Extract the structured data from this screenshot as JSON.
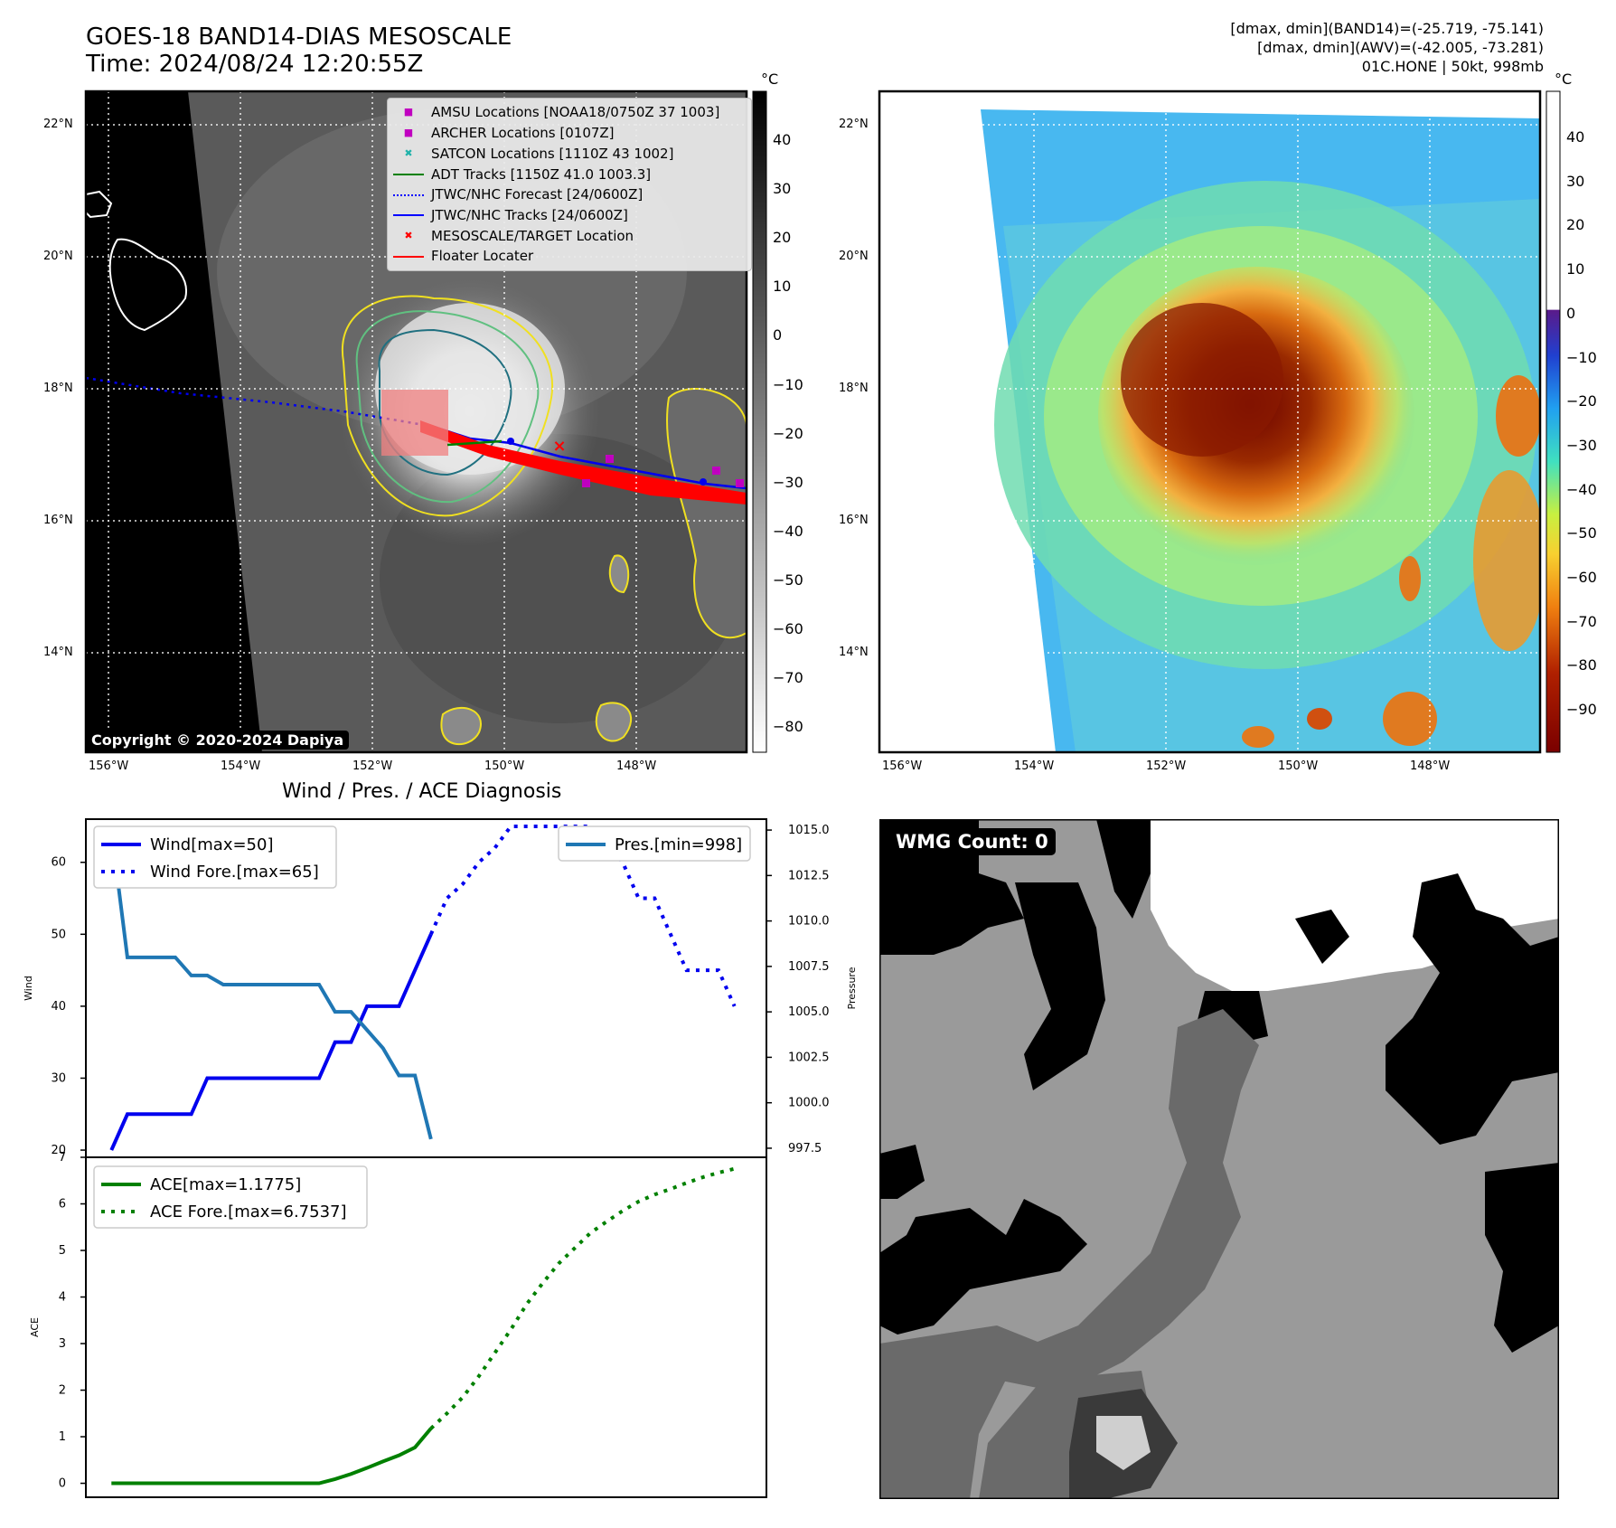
{
  "header": {
    "title_line1": "GOES-18 BAND14-DIAS MESOSCALE",
    "title_line2": "Time: 2024/08/24 12:20:55Z",
    "info_line1": "[dmax, dmin](BAND14)=(-25.719, -75.141)",
    "info_line2": "[dmax, dmin](AWV)=(-42.005, -73.281)",
    "info_line3": "01C.HONE | 50kt, 998mb"
  },
  "maps": {
    "lat_labels": [
      "22°N",
      "20°N",
      "18°N",
      "16°N",
      "14°N"
    ],
    "lon_labels": [
      "156°W",
      "154°W",
      "152°W",
      "150°W",
      "148°W"
    ],
    "copyright": "Copyright © 2020-2024 Dapiya",
    "left_colorbar": {
      "unit": "°C",
      "ticks": [
        "40",
        "30",
        "20",
        "10",
        "0",
        "−10",
        "−20",
        "−30",
        "−40",
        "−50",
        "−60",
        "−70",
        "−80"
      ]
    },
    "right_colorbar": {
      "unit": "°C",
      "ticks": [
        "40",
        "30",
        "20",
        "10",
        "0",
        "−10",
        "−20",
        "−30",
        "−40",
        "−50",
        "−60",
        "−70",
        "−80",
        "−90"
      ]
    },
    "legend": [
      {
        "label": "AMSU Locations [NOAA18/0750Z 37 1003]",
        "color": "#c000c0",
        "marker": "square"
      },
      {
        "label": "ARCHER Locations [0107Z]",
        "color": "#c000c0",
        "marker": "square"
      },
      {
        "label": "SATCON Locations [1110Z 43 1002]",
        "color": "#20b2aa",
        "marker": "x"
      },
      {
        "label": "ADT Tracks [1150Z 41.0 1003.3]",
        "color": "#008000",
        "marker": "line"
      },
      {
        "label": "JTWC/NHC Forecast [24/0600Z]",
        "color": "#0000ff",
        "marker": "dotted"
      },
      {
        "label": "JTWC/NHC Tracks [24/0600Z]",
        "color": "#0000ff",
        "marker": "line-dot"
      },
      {
        "label": "MESOSCALE/TARGET Location",
        "color": "#ff0000",
        "marker": "x"
      },
      {
        "label": "Floater Locater",
        "color": "#ff0000",
        "marker": "line"
      }
    ]
  },
  "wmg": {
    "label": "WMG Count: 0"
  },
  "chart_data": [
    {
      "type": "line",
      "title": "Wind / Pres. / ACE Diagnosis",
      "ylabel": "Wind",
      "ylim": [
        19,
        66
      ],
      "y2label": "Pressure",
      "y2lim": [
        997.0,
        1015.6
      ],
      "yticks": [
        20,
        30,
        40,
        50,
        60
      ],
      "y2ticks": [
        "997.5",
        "1000.0",
        "1002.5",
        "1005.0",
        "1007.5",
        "1010.0",
        "1012.5",
        "1015.0"
      ],
      "series": [
        {
          "name": "Wind[max=50]",
          "color": "#0000ee",
          "style": "solid",
          "axis": "left",
          "x": [
            0,
            1,
            2,
            3,
            4,
            5,
            6,
            7,
            8,
            9,
            10,
            11,
            12,
            13,
            14,
            15,
            16,
            17,
            18,
            19,
            20
          ],
          "values": [
            20,
            25,
            25,
            25,
            25,
            25,
            30,
            30,
            30,
            30,
            30,
            30,
            30,
            30,
            35,
            35,
            40,
            40,
            40,
            45,
            50
          ]
        },
        {
          "name": "Wind Fore.[max=65]",
          "color": "#0000ee",
          "style": "dotted",
          "axis": "left",
          "x": [
            20,
            21,
            22,
            23,
            24,
            25,
            26,
            27,
            28,
            29,
            30,
            31,
            32,
            33,
            34,
            35,
            36,
            37,
            38,
            39
          ],
          "values": [
            50,
            55,
            57,
            60,
            62,
            65,
            65,
            65,
            65,
            65,
            65,
            63,
            60,
            55,
            55,
            50,
            45,
            45,
            45,
            40
          ]
        },
        {
          "name": "Pres.[min=998]",
          "color": "#1f77b4",
          "style": "solid",
          "axis": "right",
          "x": [
            0,
            1,
            2,
            3,
            4,
            5,
            6,
            7,
            8,
            9,
            10,
            11,
            12,
            13,
            14,
            15,
            16,
            17,
            18,
            19,
            20
          ],
          "values": [
            1015,
            1008,
            1008,
            1008,
            1008,
            1007,
            1007,
            1006.5,
            1006.5,
            1006.5,
            1006.5,
            1006.5,
            1006.5,
            1006.5,
            1005,
            1005,
            1004,
            1003,
            1001.5,
            1001.5,
            998
          ]
        }
      ]
    },
    {
      "type": "line",
      "ylabel": "ACE",
      "ylim": [
        -0.3,
        7.0
      ],
      "yticks": [
        0,
        1,
        2,
        3,
        4,
        5,
        6,
        7
      ],
      "series": [
        {
          "name": "ACE[max=1.1775]",
          "color": "#008000",
          "style": "solid",
          "x": [
            0,
            1,
            2,
            3,
            4,
            5,
            6,
            7,
            8,
            9,
            10,
            11,
            12,
            13,
            14,
            15,
            16,
            17,
            18,
            19,
            20
          ],
          "values": [
            0,
            0,
            0,
            0,
            0,
            0,
            0,
            0,
            0,
            0,
            0,
            0,
            0,
            0,
            0.09,
            0.2,
            0.33,
            0.47,
            0.6,
            0.77,
            1.1775
          ]
        },
        {
          "name": "ACE Fore.[max=6.7537]",
          "color": "#008000",
          "style": "dotted",
          "x": [
            20,
            21,
            22,
            23,
            24,
            25,
            26,
            27,
            28,
            29,
            30,
            31,
            32,
            33,
            34,
            35,
            36,
            37,
            38,
            39
          ],
          "values": [
            1.1775,
            1.5,
            1.85,
            2.3,
            2.8,
            3.3,
            3.85,
            4.3,
            4.72,
            5.05,
            5.38,
            5.62,
            5.85,
            6.05,
            6.2,
            6.32,
            6.45,
            6.57,
            6.67,
            6.7537
          ]
        }
      ]
    }
  ]
}
